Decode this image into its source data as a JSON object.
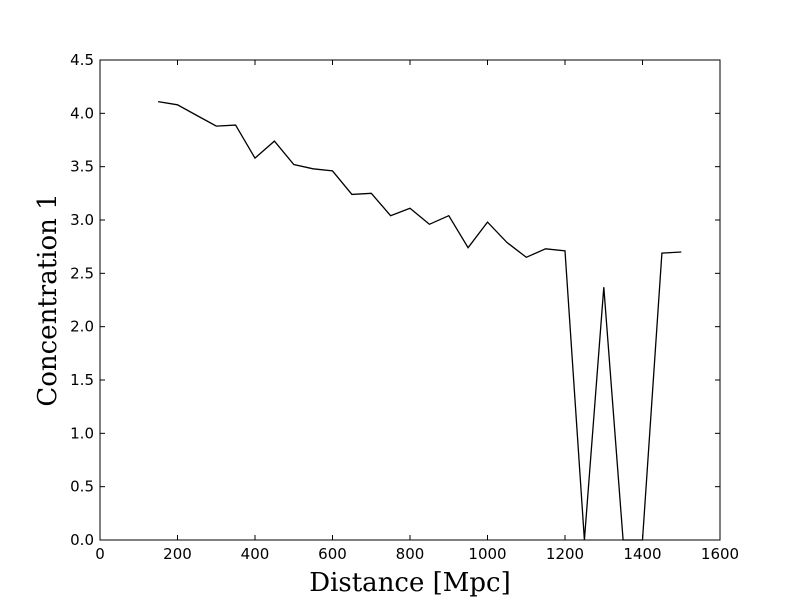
{
  "chart_data": {
    "type": "line",
    "title": "",
    "xlabel": "Distance [Mpc]",
    "ylabel": "Concentration 1",
    "xlim": [
      0,
      1600
    ],
    "ylim": [
      0,
      4.5
    ],
    "xticks": [
      0,
      200,
      400,
      600,
      800,
      1000,
      1200,
      1400,
      1600
    ],
    "xtick_labels": [
      "0",
      "200",
      "400",
      "600",
      "800",
      "1000",
      "1200",
      "1400",
      "1600"
    ],
    "yticks": [
      0.0,
      0.5,
      1.0,
      1.5,
      2.0,
      2.5,
      3.0,
      3.5,
      4.0,
      4.5
    ],
    "ytick_labels": [
      "0.0",
      "0.5",
      "1.0",
      "1.5",
      "2.0",
      "2.5",
      "3.0",
      "3.5",
      "4.0",
      "4.5"
    ],
    "grid": false,
    "series": [
      {
        "color": "#000000",
        "x": [
          150,
          200,
          250,
          300,
          350,
          400,
          450,
          500,
          550,
          600,
          650,
          700,
          750,
          800,
          850,
          900,
          950,
          1000,
          1050,
          1100,
          1150,
          1200,
          1250,
          1300,
          1350,
          1400,
          1450,
          1500
        ],
        "y": [
          4.11,
          4.08,
          3.98,
          3.88,
          3.89,
          3.58,
          3.74,
          3.52,
          3.48,
          3.46,
          3.24,
          3.25,
          3.04,
          3.11,
          2.96,
          3.04,
          2.74,
          2.98,
          2.79,
          2.65,
          2.73,
          2.71,
          0.0,
          2.37,
          0.0,
          0.0,
          2.69,
          2.7
        ]
      }
    ]
  }
}
